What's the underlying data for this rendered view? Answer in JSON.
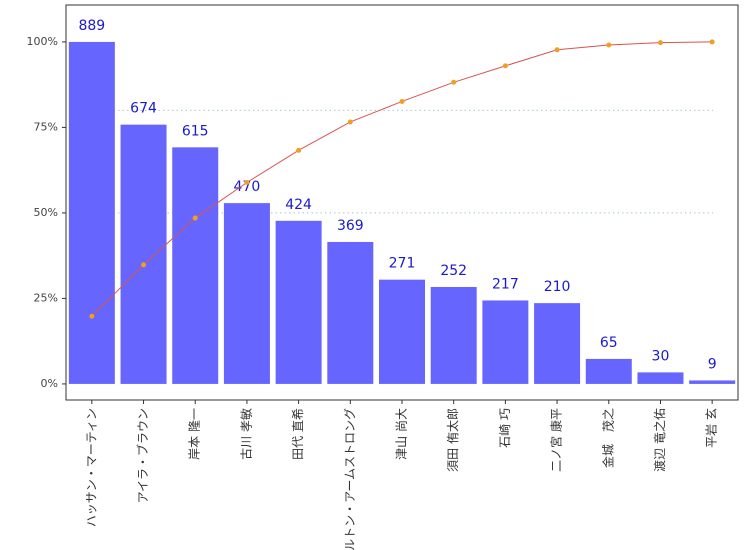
{
  "chart_data": {
    "type": "pareto",
    "categories": [
      "ハッサン・マーティン",
      "アイラ・ブラウン",
      "岸本 隆一",
      "古川 孝敏",
      "田代 直希",
      "ヒルトン・アームストロング",
      "津山 尚大",
      "須田 侑太郎",
      "石崎 巧",
      "二ノ宮 康平",
      "金城　茂之",
      "渡辺 竜之佑",
      "平岩 玄"
    ],
    "series": [
      {
        "type": "bar",
        "axis": "y2",
        "color": "#6666ff",
        "label_color": "#1a1acc",
        "values": [
          889,
          674,
          615,
          470,
          424,
          369,
          271,
          252,
          217,
          210,
          65,
          30,
          9
        ]
      },
      {
        "type": "line",
        "color": "#d9534f",
        "marker_color": "#f0a020",
        "values": [
          19.8,
          34.8,
          48.5,
          58.9,
          68.3,
          76.6,
          82.6,
          88.2,
          93.0,
          97.7,
          99.1,
          99.8,
          100
        ]
      }
    ],
    "ylim": [
      -4.7,
      110.8
    ],
    "yticks": [
      {
        "value": 0,
        "label": "0%"
      },
      {
        "value": 25,
        "label": "25%"
      },
      {
        "value": 50,
        "label": "50%"
      },
      {
        "value": 75,
        "label": "75%"
      },
      {
        "value": 100,
        "label": "100%"
      }
    ],
    "y2lim": [
      -41.8,
      985.0
    ],
    "ref_lines": [
      50,
      80
    ]
  }
}
